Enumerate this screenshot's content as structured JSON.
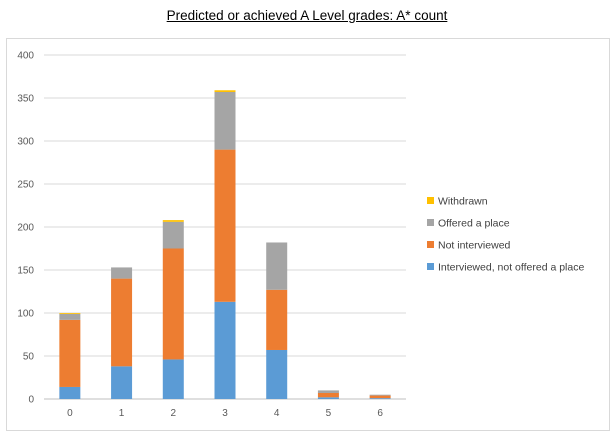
{
  "chart_data": {
    "type": "bar",
    "stacked": true,
    "title": "Predicted or achieved A Level grades: A* count",
    "xlabel": "",
    "ylabel": "",
    "categories": [
      "0",
      "1",
      "2",
      "3",
      "4",
      "5",
      "6"
    ],
    "ylim": [
      0,
      400
    ],
    "yticks": [
      0,
      50,
      100,
      150,
      200,
      250,
      300,
      350,
      400
    ],
    "grid": true,
    "legend_position": "right",
    "series": [
      {
        "name": "Interviewed, not offered a place",
        "color": "#5b9bd5",
        "values": [
          14,
          38,
          46,
          113,
          57,
          2,
          1
        ]
      },
      {
        "name": "Not interviewed",
        "color": "#ed7d31",
        "values": [
          78,
          102,
          129,
          177,
          70,
          5,
          3
        ]
      },
      {
        "name": "Offered a place",
        "color": "#a5a5a5",
        "values": [
          7,
          13,
          31,
          67,
          55,
          3,
          1
        ]
      },
      {
        "name": "Withdrawn",
        "color": "#ffc000",
        "values": [
          1,
          0,
          2,
          2,
          0,
          0,
          0
        ]
      }
    ]
  }
}
